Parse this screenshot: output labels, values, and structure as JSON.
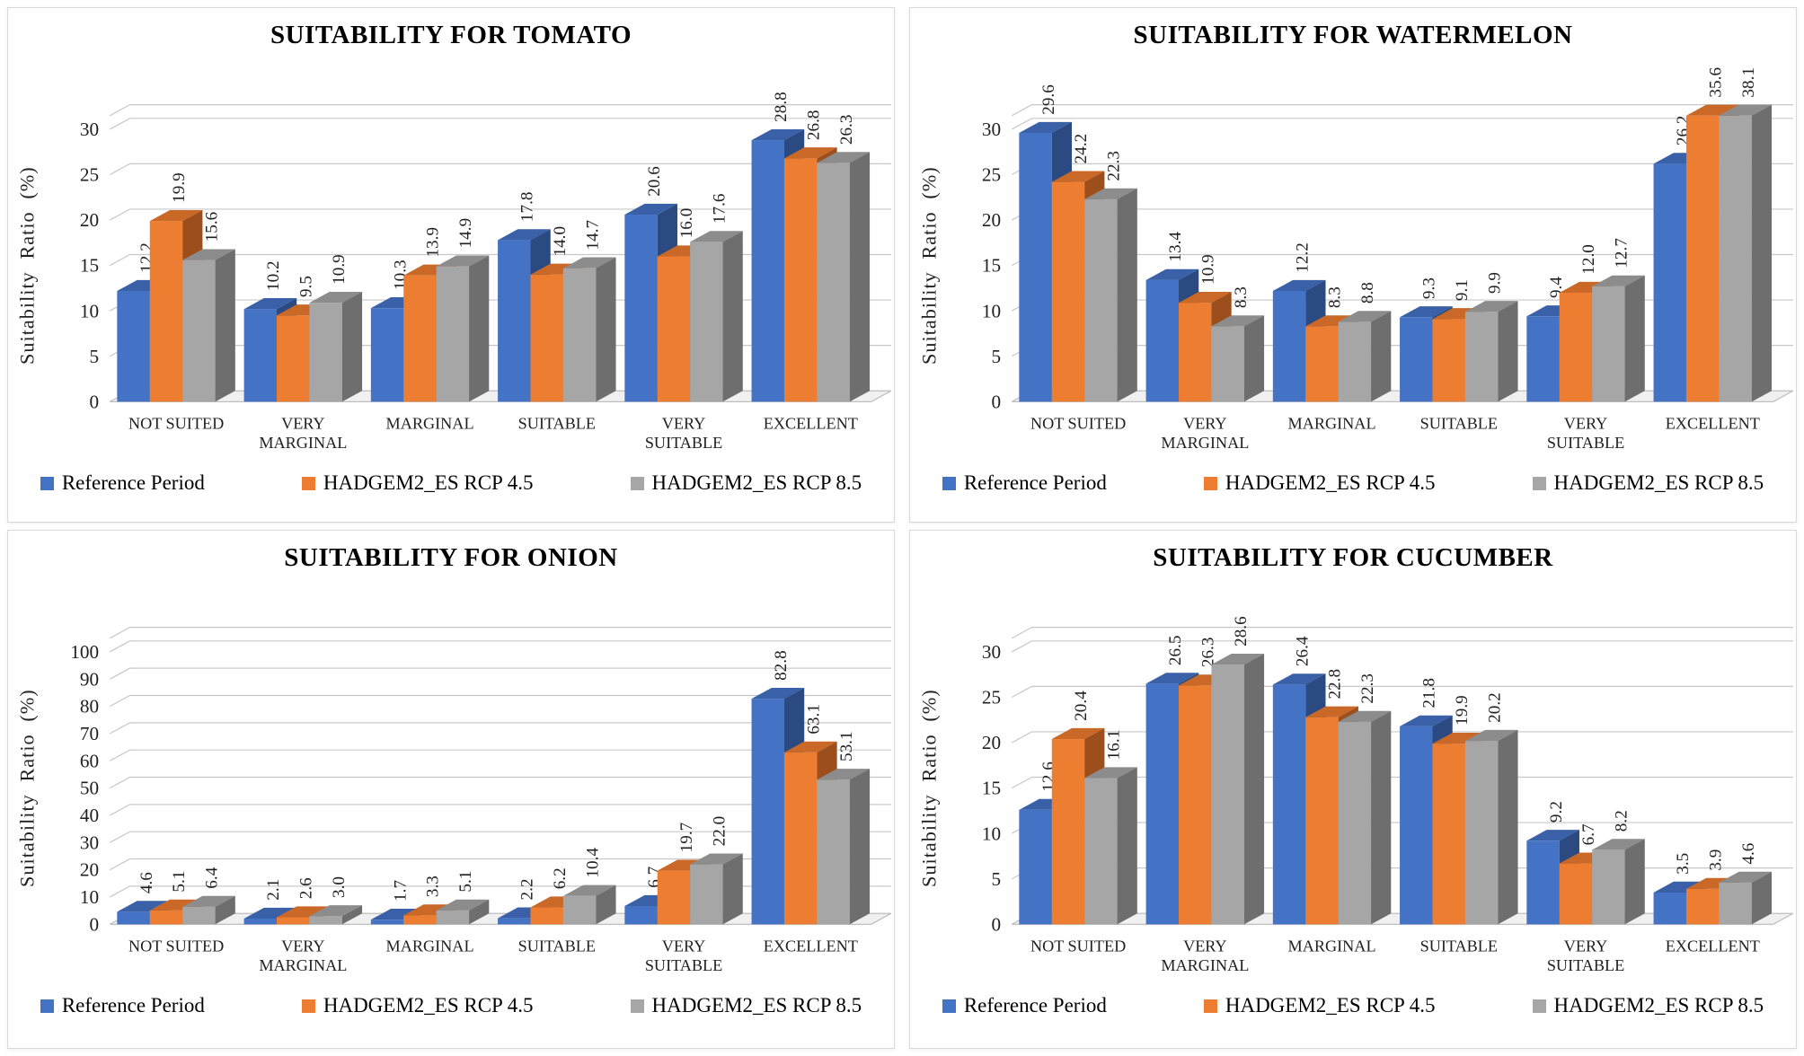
{
  "figure": {
    "ylabel": "Suitability Ratio (%)",
    "legend": [
      "Reference Period",
      "HADGEM2_ES RCP 4.5",
      "HADGEM2_ES RCP 8.5"
    ]
  },
  "styles": {
    "series_colors": [
      {
        "front": "#4472C4",
        "top": "#3A61A8",
        "side": "#2B4A81"
      },
      {
        "front": "#ED7D31",
        "top": "#C96827",
        "side": "#9C4F1D"
      },
      {
        "front": "#A6A6A6",
        "top": "#8C8C8C",
        "side": "#6E6E6E"
      }
    ],
    "gridline": "#C8C8C8",
    "floor_fill": "#F0F0F0",
    "floor_edge": "#BFBFBF",
    "label_color": "#1f1f1f"
  },
  "chart_data": [
    {
      "type": "bar",
      "title": "SUITABILITY FOR TOMATO",
      "ylabel": "Suitability Ratio (%)",
      "ylim": [
        0,
        30
      ],
      "ytick_step": 5,
      "grid": true,
      "legend_position": "bottom",
      "categories": [
        "NOT SUITED",
        "VERY\nMARGINAL",
        "MARGINAL",
        "SUITABLE",
        "VERY\nSUITABLE",
        "EXCELLENT"
      ],
      "series": [
        {
          "name": "Reference Period",
          "values": [
            12.2,
            10.2,
            10.3,
            17.8,
            20.6,
            28.8
          ]
        },
        {
          "name": "HADGEM2_ES RCP 4.5",
          "values": [
            19.9,
            9.5,
            13.9,
            14.0,
            16.0,
            26.8
          ]
        },
        {
          "name": "HADGEM2_ES RCP 8.5",
          "values": [
            15.6,
            10.9,
            14.9,
            14.7,
            17.6,
            26.3
          ]
        }
      ]
    },
    {
      "type": "bar",
      "title": "SUITABILITY FOR WATERMELON",
      "ylabel": "Suitability Ratio (%)",
      "ylim": [
        0,
        30
      ],
      "ytick_step": 5,
      "grid": true,
      "legend_position": "bottom",
      "categories": [
        "NOT SUITED",
        "VERY\nMARGINAL",
        "MARGINAL",
        "SUITABLE",
        "VERY\nSUITABLE",
        "EXCELLENT"
      ],
      "series": [
        {
          "name": "Reference Period",
          "values": [
            29.6,
            13.4,
            12.2,
            9.3,
            9.4,
            26.2
          ]
        },
        {
          "name": "HADGEM2_ES RCP 4.5",
          "values": [
            24.2,
            10.9,
            8.3,
            9.1,
            12.0,
            35.6
          ]
        },
        {
          "name": "HADGEM2_ES RCP 8.5",
          "values": [
            22.3,
            8.3,
            8.8,
            9.9,
            12.7,
            38.1
          ]
        }
      ]
    },
    {
      "type": "bar",
      "title": "SUITABILITY FOR ONION",
      "ylabel": "Suitability Ratio (%)",
      "ylim": [
        0,
        100
      ],
      "ytick_step": 10,
      "grid": true,
      "legend_position": "bottom",
      "categories": [
        "NOT SUITED",
        "VERY\nMARGINAL",
        "MARGINAL",
        "SUITABLE",
        "VERY\nSUITABLE",
        "EXCELLENT"
      ],
      "series": [
        {
          "name": "Reference Period",
          "values": [
            4.6,
            2.1,
            1.7,
            2.2,
            6.7,
            82.8
          ]
        },
        {
          "name": "HADGEM2_ES RCP 4.5",
          "values": [
            5.1,
            2.6,
            3.3,
            6.2,
            19.7,
            63.1
          ]
        },
        {
          "name": "HADGEM2_ES RCP 8.5",
          "values": [
            6.4,
            3.0,
            5.1,
            10.4,
            22.0,
            53.1
          ]
        }
      ]
    },
    {
      "type": "bar",
      "title": "SUITABILITY FOR CUCUMBER",
      "ylabel": "Suitability Ratio (%)",
      "ylim": [
        0,
        30
      ],
      "ytick_step": 5,
      "grid": true,
      "legend_position": "bottom",
      "categories": [
        "NOT SUITED",
        "VERY\nMARGINAL",
        "MARGINAL",
        "SUITABLE",
        "VERY\nSUITABLE",
        "EXCELLENT"
      ],
      "series": [
        {
          "name": "Reference Period",
          "values": [
            12.6,
            26.5,
            26.4,
            21.8,
            9.2,
            3.5
          ]
        },
        {
          "name": "HADGEM2_ES RCP 4.5",
          "values": [
            20.4,
            26.3,
            22.8,
            19.9,
            6.7,
            3.9
          ]
        },
        {
          "name": "HADGEM2_ES RCP 8.5",
          "values": [
            16.1,
            28.6,
            22.3,
            20.2,
            8.2,
            4.6
          ]
        }
      ]
    }
  ]
}
